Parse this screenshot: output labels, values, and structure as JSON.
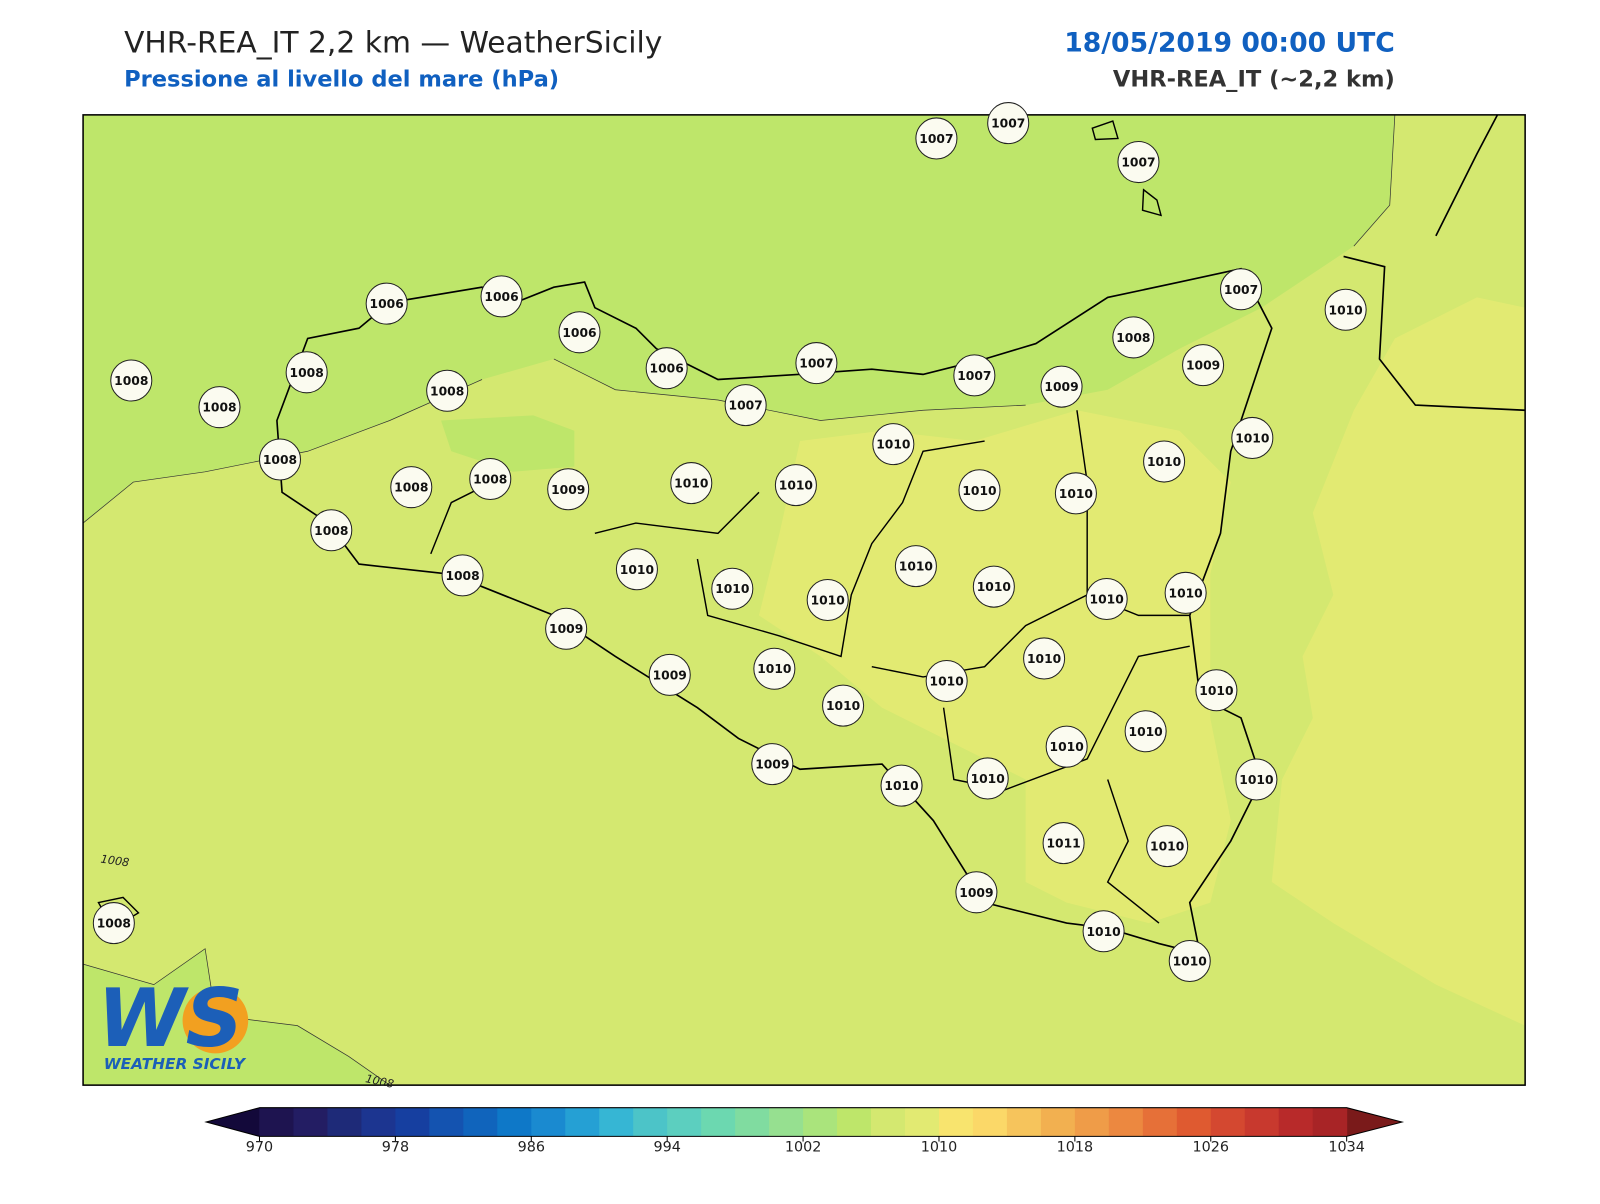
{
  "header": {
    "title": "VHR-REA_IT 2,2 km — WeatherSicily",
    "subtitle": "Pressione al livello del mare (hPa)",
    "date": "18/05/2019 00:00 UTC",
    "model": "VHR-REA_IT (~2,2 km)"
  },
  "stations": [
    {
      "label": "1007"
    },
    {
      "label": "1007"
    },
    {
      "label": "1007"
    },
    {
      "label": "1007"
    },
    {
      "label": "1010"
    },
    {
      "label": "1006"
    },
    {
      "label": "1006"
    },
    {
      "label": "1006"
    },
    {
      "label": "1006"
    },
    {
      "label": "1007"
    },
    {
      "label": "1007"
    },
    {
      "label": "1007"
    },
    {
      "label": "1009"
    },
    {
      "label": "1008"
    },
    {
      "label": "1009"
    },
    {
      "label": "1008"
    },
    {
      "label": "1008"
    },
    {
      "label": "1008"
    },
    {
      "label": "1008"
    },
    {
      "label": "1008"
    },
    {
      "label": "1008"
    },
    {
      "label": "1008"
    },
    {
      "label": "1009"
    },
    {
      "label": "1010"
    },
    {
      "label": "1010"
    },
    {
      "label": "1010"
    },
    {
      "label": "1010"
    },
    {
      "label": "1010"
    },
    {
      "label": "1010"
    },
    {
      "label": "1010"
    },
    {
      "label": "1008"
    },
    {
      "label": "1008"
    },
    {
      "label": "1010"
    },
    {
      "label": "1010"
    },
    {
      "label": "1010"
    },
    {
      "label": "1010"
    },
    {
      "label": "1010"
    },
    {
      "label": "1010"
    },
    {
      "label": "1010"
    },
    {
      "label": "1009"
    },
    {
      "label": "1009"
    },
    {
      "label": "1010"
    },
    {
      "label": "1010"
    },
    {
      "label": "1010"
    },
    {
      "label": "1010"
    },
    {
      "label": "1010"
    },
    {
      "label": "1010"
    },
    {
      "label": "1010"
    },
    {
      "label": "1009"
    },
    {
      "label": "1010"
    },
    {
      "label": "1010"
    },
    {
      "label": "1010"
    },
    {
      "label": "1011"
    },
    {
      "label": "1010"
    },
    {
      "label": "1009"
    },
    {
      "label": "1010"
    },
    {
      "label": "1010"
    },
    {
      "label": "1008"
    }
  ],
  "contour_labels": [
    "1008",
    "1008"
  ],
  "logo": {
    "letters": "WS",
    "name": "WEATHER SICILY"
  },
  "colorbar": {
    "lim": [
      970,
      1034
    ],
    "ticks": [
      970,
      978,
      986,
      994,
      1002,
      1010,
      1018,
      1026,
      1034
    ],
    "colors": [
      "#1e1450",
      "#231d63",
      "#1e2a78",
      "#1c3590",
      "#163fa0",
      "#1453b0",
      "#1064bc",
      "#0e78c8",
      "#1a8ad0",
      "#25a0d4",
      "#36b6d4",
      "#4cc4c8",
      "#5ccfbf",
      "#6cd8b0",
      "#80dca0",
      "#96e090",
      "#aae47c",
      "#bee66a",
      "#d4e870",
      "#e2ea72",
      "#f8e46e",
      "#fbd868",
      "#f6c45c",
      "#f2b050",
      "#ef9c48",
      "#ec8840",
      "#e67038",
      "#df5a30",
      "#d44830",
      "#c8392e",
      "#b82a2a",
      "#a82426"
    ],
    "under": "#13093a",
    "over": "#7a1a1a"
  }
}
